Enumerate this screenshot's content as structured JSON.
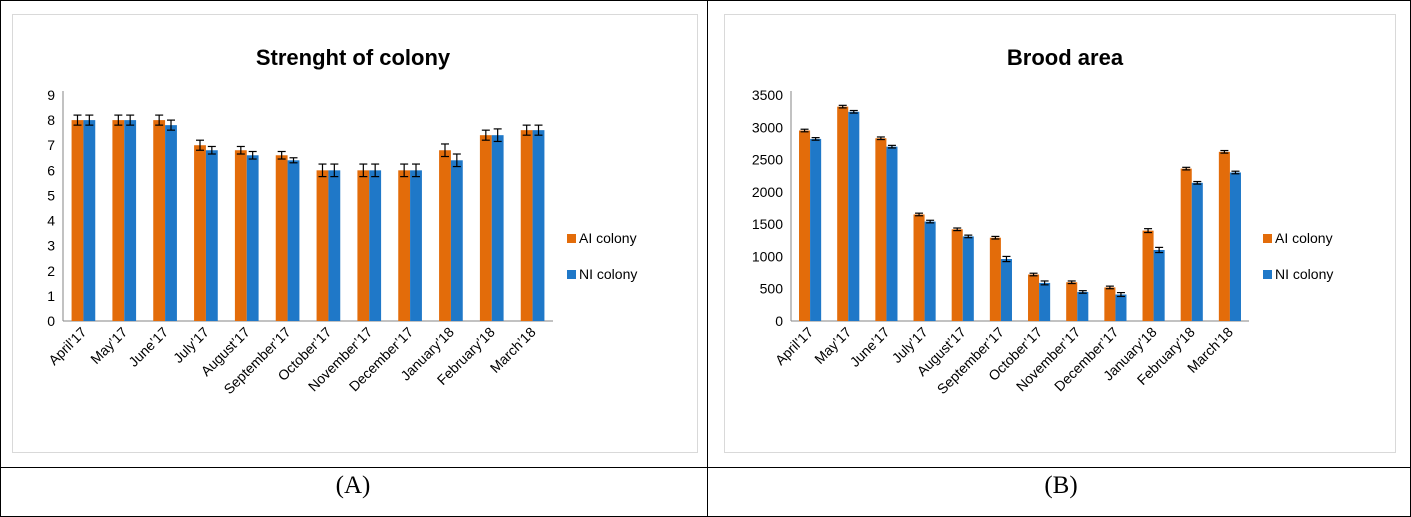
{
  "captions": {
    "a": "(A)",
    "b": "(B)"
  },
  "colors": {
    "ai": "#E36C0A",
    "ni": "#1F78C8",
    "error": "#000000"
  },
  "chart_data": [
    {
      "type": "bar",
      "title": "Strenght of colony",
      "categories": [
        "April’17",
        "May’17",
        "June’17",
        "July’17",
        "August’17",
        "September’17",
        "October’17",
        "November’17",
        "December’17",
        "January’18",
        "February’18",
        "March’18"
      ],
      "ylim": [
        0,
        9
      ],
      "yticks": [
        0,
        1,
        2,
        3,
        4,
        5,
        6,
        7,
        8,
        9
      ],
      "legend": "right",
      "series": [
        {
          "name": "AI colony",
          "values": [
            8.0,
            8.0,
            8.0,
            7.0,
            6.8,
            6.6,
            6.0,
            6.0,
            6.0,
            6.8,
            7.4,
            7.6
          ],
          "errors": [
            0.2,
            0.2,
            0.2,
            0.2,
            0.15,
            0.15,
            0.25,
            0.25,
            0.25,
            0.25,
            0.2,
            0.2
          ]
        },
        {
          "name": "NI colony",
          "values": [
            8.0,
            8.0,
            7.8,
            6.8,
            6.6,
            6.4,
            6.0,
            6.0,
            6.0,
            6.4,
            7.4,
            7.6
          ],
          "errors": [
            0.2,
            0.2,
            0.2,
            0.15,
            0.15,
            0.1,
            0.25,
            0.25,
            0.25,
            0.25,
            0.25,
            0.2
          ]
        }
      ]
    },
    {
      "type": "bar",
      "title": "Brood area",
      "categories": [
        "April’17",
        "May’17",
        "June’17",
        "July’17",
        "August’17",
        "September’17",
        "October’17",
        "November’17",
        "December’17",
        "January’18",
        "February’18",
        "March’18"
      ],
      "ylim": [
        0,
        3500
      ],
      "yticks": [
        0,
        500,
        1000,
        1500,
        2000,
        2500,
        3000,
        3500
      ],
      "legend": "right",
      "series": [
        {
          "name": "AI colony",
          "values": [
            2950,
            3320,
            2830,
            1650,
            1420,
            1290,
            720,
            600,
            520,
            1400,
            2360,
            2620
          ],
          "errors": [
            20,
            20,
            20,
            20,
            20,
            20,
            20,
            20,
            20,
            30,
            20,
            20
          ]
        },
        {
          "name": "NI colony",
          "values": [
            2820,
            3240,
            2700,
            1540,
            1310,
            960,
            590,
            450,
            410,
            1100,
            2140,
            2300
          ],
          "errors": [
            20,
            20,
            20,
            20,
            20,
            40,
            30,
            20,
            30,
            40,
            20,
            20
          ]
        }
      ]
    }
  ]
}
